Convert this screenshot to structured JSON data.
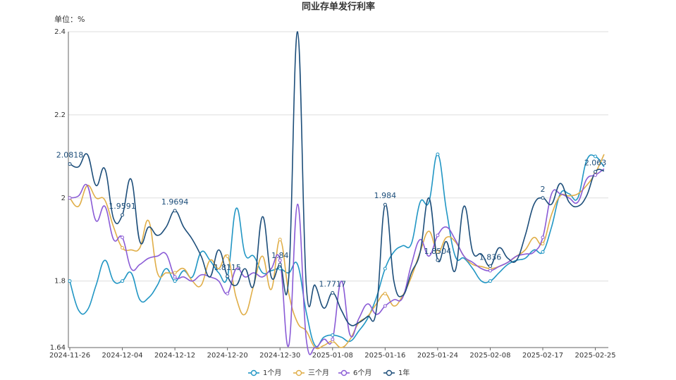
{
  "chart_data": {
    "type": "line",
    "title": "同业存单发行利率",
    "y_label": "单位：%",
    "categories": [
      "2024-11-26",
      null,
      null,
      null,
      null,
      null,
      "2024-12-04",
      null,
      null,
      null,
      null,
      null,
      "2024-12-12",
      null,
      null,
      null,
      null,
      null,
      "2024-12-20",
      null,
      null,
      null,
      null,
      null,
      "2024-12-30",
      null,
      null,
      null,
      null,
      null,
      "2025-01-08",
      null,
      null,
      null,
      null,
      null,
      "2025-01-16",
      null,
      null,
      null,
      null,
      null,
      "2025-01-24",
      null,
      null,
      null,
      null,
      null,
      "2025-02-08",
      null,
      null,
      null,
      null,
      null,
      "2025-02-17",
      null,
      null,
      null,
      null,
      null,
      "2025-02-25",
      null
    ],
    "series": [
      {
        "name": "1个月",
        "color": "#2196c4",
        "values": [
          1.8,
          1.73,
          1.73,
          1.79,
          1.85,
          1.8,
          1.8,
          1.82,
          1.755,
          1.76,
          1.79,
          1.83,
          1.8,
          1.825,
          1.81,
          1.87,
          1.85,
          1.82,
          1.81,
          1.975,
          1.865,
          1.86,
          1.82,
          1.825,
          1.83,
          1.82,
          1.84,
          1.725,
          1.645,
          1.665,
          1.67,
          1.665,
          1.655,
          1.68,
          1.71,
          1.76,
          1.83,
          1.87,
          1.885,
          1.89,
          1.99,
          1.99,
          2.105,
          1.97,
          1.86,
          1.855,
          1.83,
          1.8,
          1.8,
          1.82,
          1.84,
          1.85,
          1.855,
          1.875,
          1.87,
          1.93,
          2.01,
          2.01,
          2.0,
          2.09,
          2.1,
          2.075
        ]
      },
      {
        "name": "三个月",
        "color": "#e0ae48",
        "values": [
          2.0,
          1.98,
          2.03,
          2.0,
          1.995,
          1.93,
          1.88,
          1.875,
          1.88,
          1.945,
          1.82,
          1.82,
          1.82,
          1.83,
          1.8,
          1.79,
          1.85,
          1.83,
          1.86,
          1.76,
          1.72,
          1.79,
          1.86,
          1.78,
          1.9,
          1.77,
          1.7,
          1.68,
          1.64,
          1.645,
          1.655,
          1.64,
          1.66,
          1.7,
          1.715,
          1.745,
          1.77,
          1.74,
          1.765,
          1.81,
          1.87,
          1.92,
          1.87,
          1.905,
          1.895,
          1.86,
          1.84,
          1.835,
          1.83,
          1.835,
          1.845,
          1.86,
          1.875,
          1.905,
          1.89,
          1.96,
          2.005,
          2.005,
          2.01,
          2.03,
          2.06,
          2.105
        ]
      },
      {
        "name": "6个月",
        "color": "#8a5bd6",
        "values": [
          2.0,
          2.005,
          2.03,
          1.945,
          1.98,
          1.9,
          1.905,
          1.83,
          1.84,
          1.855,
          1.86,
          1.865,
          1.81,
          1.81,
          1.8,
          1.815,
          1.81,
          1.8,
          1.77,
          1.83,
          1.81,
          1.82,
          1.81,
          1.83,
          1.85,
          1.645,
          1.985,
          1.66,
          1.64,
          1.66,
          1.66,
          1.8,
          1.67,
          1.71,
          1.745,
          1.72,
          1.74,
          1.755,
          1.76,
          1.84,
          1.9,
          1.86,
          1.91,
          1.93,
          1.9,
          1.86,
          1.845,
          1.83,
          1.825,
          1.835,
          1.845,
          1.86,
          1.865,
          1.87,
          1.905,
          2.01,
          2.01,
          2.0,
          1.99,
          2.045,
          2.055,
          2.07
        ]
      },
      {
        "name": "1年",
        "color": "#1d4e7a",
        "data_labels": true,
        "values": [
          2.0818,
          2.075,
          2.105,
          2.03,
          2.07,
          1.95,
          1.9591,
          2.045,
          1.895,
          1.93,
          1.91,
          1.93,
          1.9694,
          1.93,
          1.9,
          1.86,
          1.81,
          1.875,
          1.8115,
          1.79,
          1.83,
          1.79,
          1.955,
          1.81,
          1.84,
          1.81,
          2.4,
          1.79,
          1.79,
          1.735,
          1.7717,
          1.73,
          1.695,
          1.7,
          1.715,
          1.73,
          1.984,
          1.8,
          1.765,
          1.82,
          1.87,
          2.0,
          1.8504,
          1.895,
          1.825,
          1.98,
          1.87,
          1.865,
          1.836,
          1.88,
          1.855,
          1.85,
          1.91,
          1.985,
          2.0,
          1.985,
          2.035,
          1.99,
          1.98,
          2.005,
          2.063,
          2.065
        ]
      }
    ],
    "ylim": [
      1.64,
      2.4
    ],
    "yticks": [
      1.64,
      1.8,
      2,
      2.2,
      2.4
    ],
    "grid": true,
    "legend": "bottom"
  }
}
